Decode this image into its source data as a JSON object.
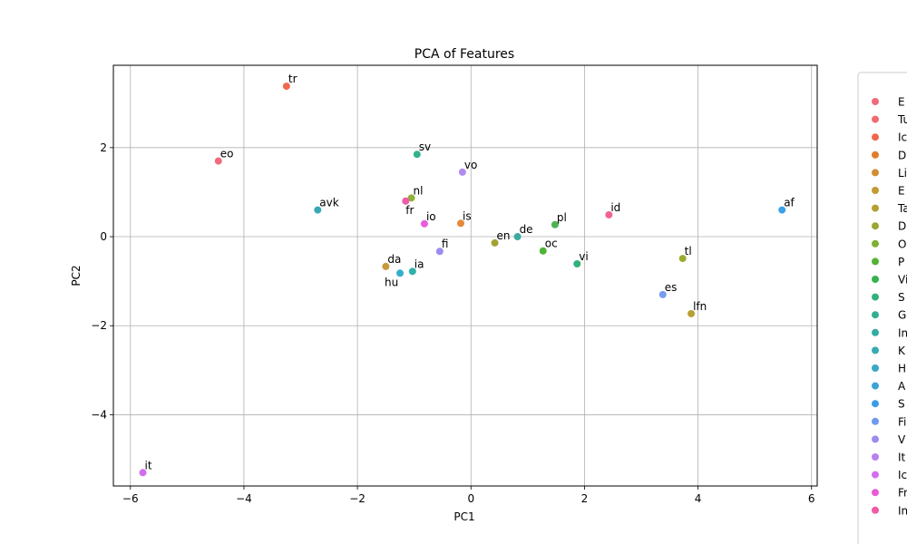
{
  "chart_data": {
    "type": "scatter",
    "title": "PCA of Features",
    "xlabel": "PC1",
    "ylabel": "PC2",
    "xlim": [
      -6.3,
      6.1
    ],
    "ylim": [
      -5.6,
      3.85
    ],
    "xticks": [
      -6,
      -4,
      -2,
      0,
      2,
      4,
      6
    ],
    "xtick_labels": [
      "−6",
      "−4",
      "−2",
      "0",
      "2",
      "4",
      "6"
    ],
    "yticks": [
      -4,
      -2,
      0,
      2
    ],
    "ytick_labels": [
      "−4",
      "−2",
      "0",
      "2"
    ],
    "grid": true,
    "legend_position": "right, outside plot",
    "points": [
      {
        "label": "tr",
        "x": -3.25,
        "y": 3.38,
        "color": "#f0684c"
      },
      {
        "label": "eo",
        "x": -4.45,
        "y": 1.7,
        "color": "#f26a7b"
      },
      {
        "label": "sv",
        "x": -0.95,
        "y": 1.85,
        "color": "#33b18f"
      },
      {
        "label": "vo",
        "x": -0.15,
        "y": 1.45,
        "color": "#b08cf0"
      },
      {
        "label": "nl",
        "x": -1.05,
        "y": 0.87,
        "color": "#8eb137"
      },
      {
        "label": "fr",
        "x": -1.15,
        "y": 0.8,
        "color": "#f15aa9"
      },
      {
        "label": "avk",
        "x": -2.7,
        "y": 0.6,
        "color": "#37a8b6"
      },
      {
        "label": "io",
        "x": -0.82,
        "y": 0.29,
        "color": "#e85ce0"
      },
      {
        "label": "is",
        "x": -0.18,
        "y": 0.3,
        "color": "#e58a3a"
      },
      {
        "label": "de",
        "x": 0.82,
        "y": 0.0,
        "color": "#3aab9e"
      },
      {
        "label": "en",
        "x": 0.42,
        "y": -0.14,
        "color": "#a3a132"
      },
      {
        "label": "pl",
        "x": 1.48,
        "y": 0.27,
        "color": "#4bb450"
      },
      {
        "label": "id",
        "x": 2.43,
        "y": 0.49,
        "color": "#f26294"
      },
      {
        "label": "af",
        "x": 5.48,
        "y": 0.6,
        "color": "#3aa0e8"
      },
      {
        "label": "oc",
        "x": 1.27,
        "y": -0.32,
        "color": "#50b537"
      },
      {
        "label": "fi",
        "x": -0.55,
        "y": -0.33,
        "color": "#9a8cf0"
      },
      {
        "label": "vi",
        "x": 1.87,
        "y": -0.61,
        "color": "#33b07a"
      },
      {
        "label": "tl",
        "x": 3.73,
        "y": -0.49,
        "color": "#9cab32"
      },
      {
        "label": "da",
        "x": -1.5,
        "y": -0.67,
        "color": "#c99a3a"
      },
      {
        "label": "ia",
        "x": -1.03,
        "y": -0.78,
        "color": "#2fb2a8"
      },
      {
        "label": "hu",
        "x": -1.25,
        "y": -0.82,
        "color": "#35aecb"
      },
      {
        "label": "es",
        "x": 3.38,
        "y": -1.3,
        "color": "#7a9cf0"
      },
      {
        "label": "lfn",
        "x": 3.88,
        "y": -1.73,
        "color": "#b6a032"
      },
      {
        "label": "it",
        "x": -5.78,
        "y": -5.3,
        "color": "#d36df0"
      }
    ],
    "legend_entries": [
      {
        "text": "E",
        "color": "#f26a7b"
      },
      {
        "text": "Tu",
        "color": "#f16a72"
      },
      {
        "text": "Ic",
        "color": "#f0684c"
      },
      {
        "text": "D",
        "color": "#e27d2c"
      },
      {
        "text": "Li",
        "color": "#d18d34"
      },
      {
        "text": "E",
        "color": "#c49a32"
      },
      {
        "text": "Ta",
        "color": "#b0a132"
      },
      {
        "text": "D",
        "color": "#9aa632"
      },
      {
        "text": "O",
        "color": "#7eb032"
      },
      {
        "text": "P",
        "color": "#52b234"
      },
      {
        "text": "Vi",
        "color": "#33b34f"
      },
      {
        "text": "S",
        "color": "#33b07a"
      },
      {
        "text": "G",
        "color": "#33ae93"
      },
      {
        "text": "In",
        "color": "#33aca3"
      },
      {
        "text": "K",
        "color": "#36aab2"
      },
      {
        "text": "H",
        "color": "#39a8c4"
      },
      {
        "text": "A",
        "color": "#3aa3d8"
      },
      {
        "text": "S",
        "color": "#3a9ce8"
      },
      {
        "text": "Fi",
        "color": "#6f98f0"
      },
      {
        "text": "V",
        "color": "#9a8cf0"
      },
      {
        "text": "It",
        "color": "#b980f0"
      },
      {
        "text": "Ic",
        "color": "#d46ef0"
      },
      {
        "text": "Fr",
        "color": "#e85ad6"
      },
      {
        "text": "In",
        "color": "#f05aa6"
      }
    ]
  }
}
